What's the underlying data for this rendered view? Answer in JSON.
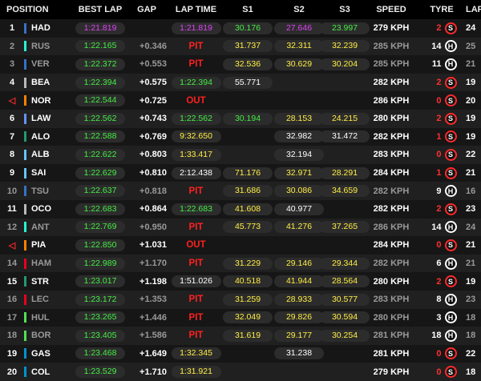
{
  "header": {
    "position": "POSITION",
    "best_lap": "BEST LAP",
    "gap": "GAP",
    "lap_time": "LAP TIME",
    "s1": "S1",
    "s2": "S2",
    "s3": "S3",
    "speed": "SPEED",
    "tyre": "TYRE",
    "laps": "LAPS"
  },
  "rows": [
    {
      "pos": "1",
      "code": "HAD",
      "team": "#3671C6",
      "best": "1:21.819",
      "best_c": "purple",
      "gap": "",
      "lap": "1:21.819",
      "lap_c": "purple",
      "s1": "30.176",
      "s1_c": "green",
      "s2": "27.646",
      "s2_c": "purple",
      "s3": "23.997",
      "s3_c": "green",
      "speed": "279 KPH",
      "tyre_age": "2",
      "tyre": "S",
      "laps": "24"
    },
    {
      "pos": "2",
      "code": "RUS",
      "team": "#27F4D2",
      "out": true,
      "best": "1:22.165",
      "best_c": "green",
      "gap": "+0.346",
      "lap": "PIT",
      "lap_c": "pit",
      "s1": "31.737",
      "s1_c": "yellow",
      "s2": "32.311",
      "s2_c": "yellow",
      "s3": "32.239",
      "s3_c": "yellow",
      "speed": "285 KPH",
      "tyre_age": "14",
      "tyre": "H",
      "laps": "25"
    },
    {
      "pos": "3",
      "code": "VER",
      "team": "#3671C6",
      "out": true,
      "best": "1:22.372",
      "best_c": "green",
      "gap": "+0.553",
      "lap": "PIT",
      "lap_c": "pit",
      "s1": "32.536",
      "s1_c": "yellow",
      "s2": "30.629",
      "s2_c": "yellow",
      "s3": "30.204",
      "s3_c": "yellow",
      "speed": "285 KPH",
      "tyre_age": "11",
      "tyre": "H",
      "laps": "21"
    },
    {
      "pos": "4",
      "code": "BEA",
      "team": "#B6BABD",
      "best": "1:22.394",
      "best_c": "green",
      "gap": "+0.575",
      "lap": "1:22.394",
      "lap_c": "green",
      "s1": "55.771",
      "s1_c": "white",
      "s2": "",
      "s2_c": "",
      "s3": "",
      "s3_c": "",
      "speed": "282 KPH",
      "tyre_age": "2",
      "tyre": "S",
      "laps": "19"
    },
    {
      "pos": "◁",
      "code": "NOR",
      "team": "#FF8000",
      "outicon": true,
      "best": "1:22.544",
      "best_c": "green",
      "gap": "+0.725",
      "lap": "OUT",
      "lap_c": "outtxt",
      "s1": "",
      "s1_c": "",
      "s2": "",
      "s2_c": "",
      "s3": "",
      "s3_c": "",
      "speed": "286 KPH",
      "tyre_age": "0",
      "tyre": "S",
      "laps": "20"
    },
    {
      "pos": "6",
      "code": "LAW",
      "team": "#6692FF",
      "best": "1:22.562",
      "best_c": "green",
      "gap": "+0.743",
      "lap": "1:22.562",
      "lap_c": "green",
      "s1": "30.194",
      "s1_c": "green",
      "s2": "28.153",
      "s2_c": "yellow",
      "s3": "24.215",
      "s3_c": "yellow",
      "speed": "280 KPH",
      "tyre_age": "2",
      "tyre": "S",
      "laps": "19"
    },
    {
      "pos": "7",
      "code": "ALO",
      "team": "#229971",
      "best": "1:22.588",
      "best_c": "green",
      "gap": "+0.769",
      "lap": "9:32.650",
      "lap_c": "yellow",
      "s1": "",
      "s1_c": "",
      "s2": "32.982",
      "s2_c": "white",
      "s3": "31.472",
      "s3_c": "white",
      "speed": "282 KPH",
      "tyre_age": "1",
      "tyre": "S",
      "laps": "19"
    },
    {
      "pos": "8",
      "code": "ALB",
      "team": "#64C4FF",
      "best": "1:22.622",
      "best_c": "green",
      "gap": "+0.803",
      "lap": "1:33.417",
      "lap_c": "yellow",
      "s1": "",
      "s1_c": "",
      "s2": "32.194",
      "s2_c": "white",
      "s3": "",
      "s3_c": "",
      "speed": "283 KPH",
      "tyre_age": "0",
      "tyre": "S",
      "laps": "22"
    },
    {
      "pos": "9",
      "code": "SAI",
      "team": "#64C4FF",
      "best": "1:22.629",
      "best_c": "green",
      "gap": "+0.810",
      "lap": "2:12.438",
      "lap_c": "white",
      "s1": "71.176",
      "s1_c": "yellow",
      "s2": "32.971",
      "s2_c": "yellow",
      "s3": "28.291",
      "s3_c": "yellow",
      "speed": "284 KPH",
      "tyre_age": "1",
      "tyre": "S",
      "laps": "21"
    },
    {
      "pos": "10",
      "code": "TSU",
      "team": "#3671C6",
      "out": true,
      "best": "1:22.637",
      "best_c": "green",
      "gap": "+0.818",
      "lap": "PIT",
      "lap_c": "pit",
      "s1": "31.686",
      "s1_c": "yellow",
      "s2": "30.086",
      "s2_c": "yellow",
      "s3": "34.659",
      "s3_c": "yellow",
      "speed": "282 KPH",
      "tyre_age": "9",
      "tyre": "H",
      "laps": "16"
    },
    {
      "pos": "11",
      "code": "OCO",
      "team": "#B6BABD",
      "best": "1:22.683",
      "best_c": "green",
      "gap": "+0.864",
      "lap": "1:22.683",
      "lap_c": "green",
      "s1": "41.608",
      "s1_c": "yellow",
      "s2": "40.977",
      "s2_c": "white",
      "s3": "",
      "s3_c": "",
      "speed": "282 KPH",
      "tyre_age": "2",
      "tyre": "S",
      "laps": "23"
    },
    {
      "pos": "12",
      "code": "ANT",
      "team": "#27F4D2",
      "out": true,
      "best": "1:22.769",
      "best_c": "green",
      "gap": "+0.950",
      "lap": "PIT",
      "lap_c": "pit",
      "s1": "45.773",
      "s1_c": "yellow",
      "s2": "41.276",
      "s2_c": "yellow",
      "s3": "37.265",
      "s3_c": "yellow",
      "speed": "286 KPH",
      "tyre_age": "14",
      "tyre": "H",
      "laps": "24"
    },
    {
      "pos": "◁",
      "code": "PIA",
      "team": "#FF8000",
      "outicon": true,
      "best": "1:22.850",
      "best_c": "green",
      "gap": "+1.031",
      "lap": "OUT",
      "lap_c": "outtxt",
      "s1": "",
      "s1_c": "",
      "s2": "",
      "s2_c": "",
      "s3": "",
      "s3_c": "",
      "speed": "284 KPH",
      "tyre_age": "0",
      "tyre": "S",
      "laps": "21"
    },
    {
      "pos": "14",
      "code": "HAM",
      "team": "#E80020",
      "out": true,
      "best": "1:22.989",
      "best_c": "green",
      "gap": "+1.170",
      "lap": "PIT",
      "lap_c": "pit",
      "s1": "31.229",
      "s1_c": "yellow",
      "s2": "29.146",
      "s2_c": "yellow",
      "s3": "29.344",
      "s3_c": "yellow",
      "speed": "282 KPH",
      "tyre_age": "6",
      "tyre": "H",
      "laps": "21"
    },
    {
      "pos": "15",
      "code": "STR",
      "team": "#229971",
      "best": "1:23.017",
      "best_c": "green",
      "gap": "+1.198",
      "lap": "1:51.026",
      "lap_c": "white",
      "s1": "40.518",
      "s1_c": "yellow",
      "s2": "41.944",
      "s2_c": "yellow",
      "s3": "28.564",
      "s3_c": "yellow",
      "speed": "280 KPH",
      "tyre_age": "2",
      "tyre": "S",
      "laps": "19"
    },
    {
      "pos": "16",
      "code": "LEC",
      "team": "#E80020",
      "out": true,
      "best": "1:23.172",
      "best_c": "green",
      "gap": "+1.353",
      "lap": "PIT",
      "lap_c": "pit",
      "s1": "31.259",
      "s1_c": "yellow",
      "s2": "28.933",
      "s2_c": "yellow",
      "s3": "30.577",
      "s3_c": "yellow",
      "speed": "283 KPH",
      "tyre_age": "8",
      "tyre": "H",
      "laps": "23"
    },
    {
      "pos": "17",
      "code": "HUL",
      "team": "#52E252",
      "out": true,
      "best": "1:23.265",
      "best_c": "green",
      "gap": "+1.446",
      "lap": "PIT",
      "lap_c": "pit",
      "s1": "32.049",
      "s1_c": "yellow",
      "s2": "29.826",
      "s2_c": "yellow",
      "s3": "30.594",
      "s3_c": "yellow",
      "speed": "280 KPH",
      "tyre_age": "3",
      "tyre": "H",
      "laps": "18"
    },
    {
      "pos": "18",
      "code": "BOR",
      "team": "#52E252",
      "out": true,
      "best": "1:23.405",
      "best_c": "green",
      "gap": "+1.586",
      "lap": "PIT",
      "lap_c": "pit",
      "s1": "31.619",
      "s1_c": "yellow",
      "s2": "29.177",
      "s2_c": "yellow",
      "s3": "30.254",
      "s3_c": "yellow",
      "speed": "281 KPH",
      "tyre_age": "18",
      "tyre": "H",
      "laps": "18"
    },
    {
      "pos": "19",
      "code": "GAS",
      "team": "#0093CC",
      "best": "1:23.468",
      "best_c": "green",
      "gap": "+1.649",
      "lap": "1:32.345",
      "lap_c": "yellow",
      "s1": "",
      "s1_c": "",
      "s2": "31.238",
      "s2_c": "white",
      "s3": "",
      "s3_c": "",
      "speed": "281 KPH",
      "tyre_age": "0",
      "tyre": "S",
      "laps": "22"
    },
    {
      "pos": "20",
      "code": "COL",
      "team": "#0093CC",
      "best": "1:23.529",
      "best_c": "green",
      "gap": "+1.710",
      "lap": "1:31.921",
      "lap_c": "yellow",
      "s1": "",
      "s1_c": "",
      "s2": "",
      "s2_c": "",
      "s3": "",
      "s3_c": "",
      "speed": "279 KPH",
      "tyre_age": "0",
      "tyre": "S",
      "laps": "18"
    }
  ]
}
